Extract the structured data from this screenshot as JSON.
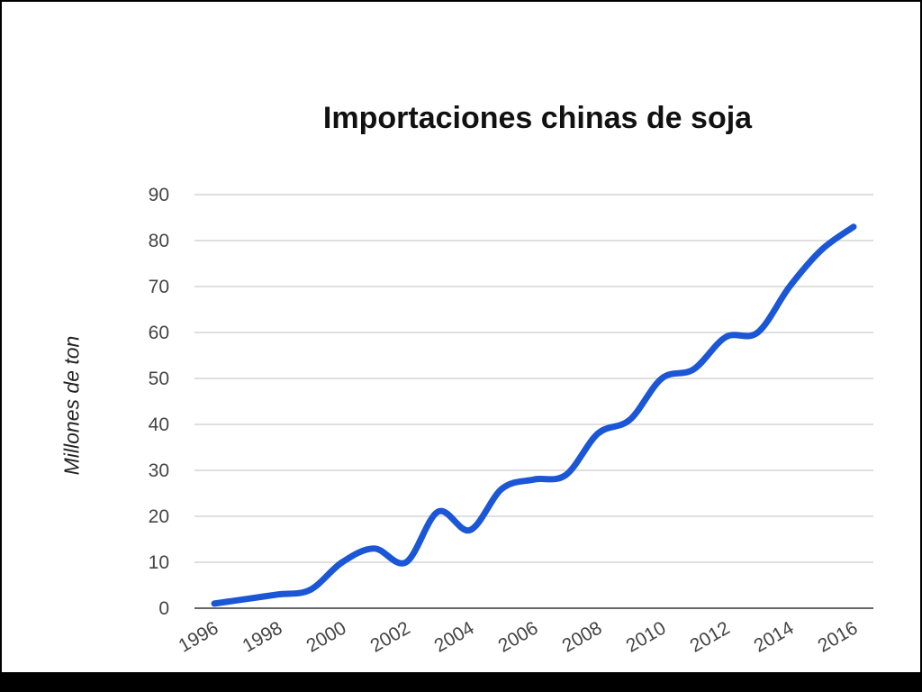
{
  "chart_data": {
    "type": "line",
    "title": "Importaciones chinas de soja",
    "ylabel": "Millones de ton",
    "xlabel": "",
    "ylim": [
      0,
      90
    ],
    "y_ticks": [
      0,
      10,
      20,
      30,
      40,
      50,
      60,
      70,
      80,
      90
    ],
    "x_tick_labels": [
      "1996",
      "1998",
      "2000",
      "2002",
      "2004",
      "2006",
      "2008",
      "2010",
      "2012",
      "2014",
      "2016"
    ],
    "grid": true,
    "legend": "none",
    "line_color": "#1a56d6",
    "series": [
      {
        "x": [
          1996,
          1997,
          1998,
          1999,
          2000,
          2001,
          2002,
          2003,
          2004,
          2005,
          2006,
          2007,
          2008,
          2009,
          2010,
          2011,
          2012,
          2013,
          2014,
          2015,
          2016
        ],
        "values": [
          1,
          2,
          3,
          4,
          10,
          13,
          10,
          21,
          17,
          26,
          28,
          29,
          38,
          41,
          50,
          52,
          59,
          60,
          70,
          78,
          83
        ]
      }
    ]
  }
}
